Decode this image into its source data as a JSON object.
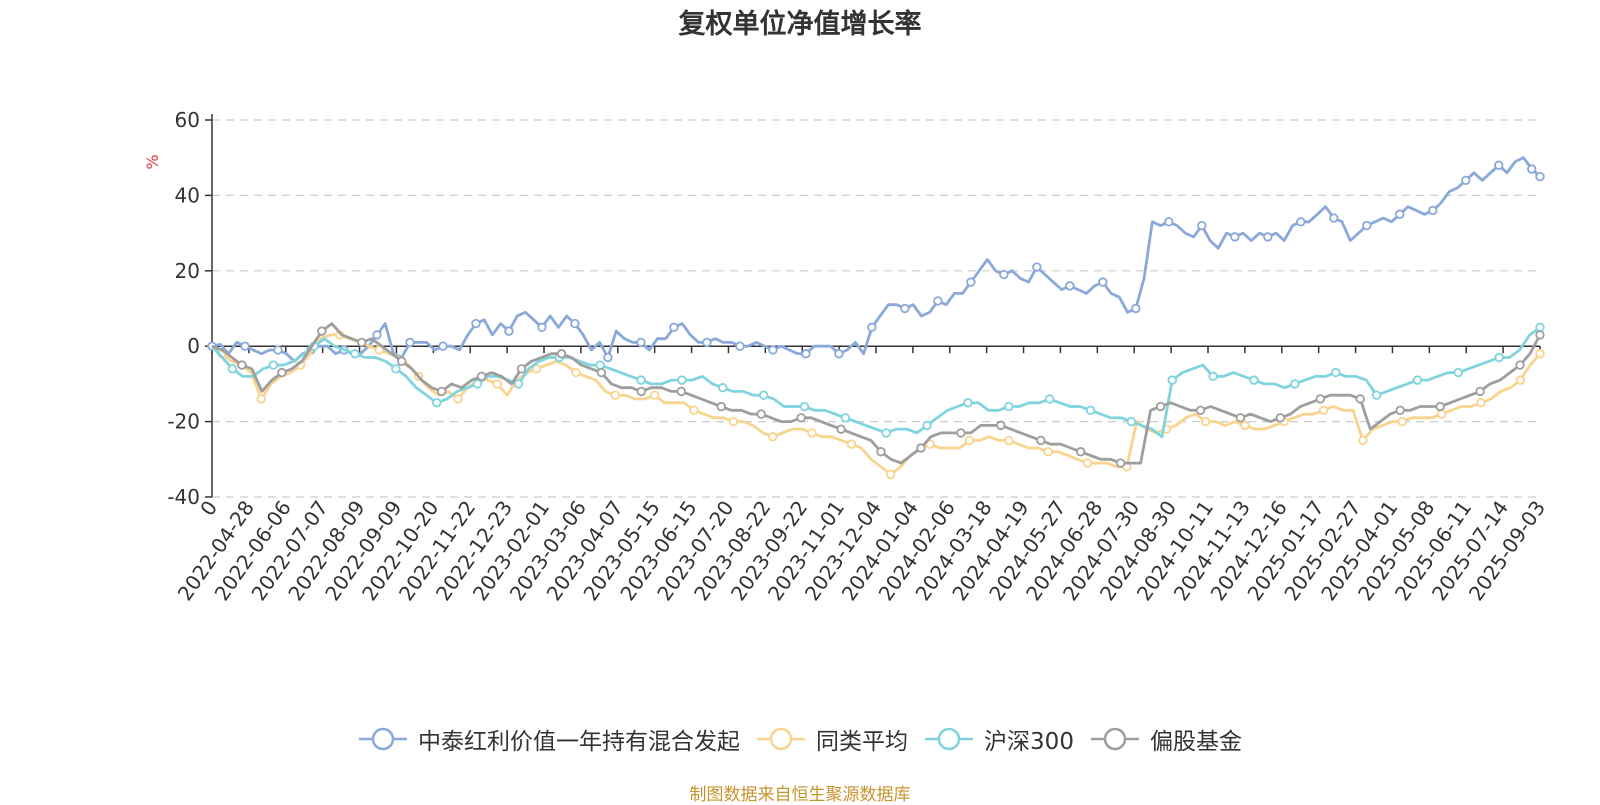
{
  "chart_data": {
    "type": "line",
    "title": "复权单位净值增长率",
    "ylabel": "%",
    "ylim": [
      -40,
      60
    ],
    "yticks": [
      -40,
      -20,
      0,
      20,
      40,
      60
    ],
    "grid": true,
    "legend_position": "bottom",
    "x_tick_labels": [
      "0",
      "2022-04-28",
      "2022-06-06",
      "2022-07-07",
      "2022-08-09",
      "2022-09-09",
      "2022-10-20",
      "2022-11-22",
      "2022-12-23",
      "2023-02-01",
      "2023-03-06",
      "2023-04-07",
      "2023-05-15",
      "2023-06-15",
      "2023-07-20",
      "2023-08-22",
      "2023-09-22",
      "2023-11-01",
      "2023-12-04",
      "2024-01-04",
      "2024-02-06",
      "2024-03-18",
      "2024-04-19",
      "2024-05-27",
      "2024-06-28",
      "2024-07-30",
      "2024-08-30",
      "2024-10-11",
      "2024-11-13",
      "2024-12-16",
      "2025-01-17",
      "2025-02-27",
      "2025-04-01",
      "2025-05-08",
      "2025-06-11",
      "2025-07-14",
      "2025-09-03"
    ],
    "series": [
      {
        "name": "中泰红利价值一年持有混合发起",
        "color": "#8aa9da",
        "values": [
          0,
          0.5,
          -2,
          1,
          0,
          -1,
          -2,
          -1,
          -1,
          -2,
          -4,
          -2,
          -1,
          0,
          0,
          -2,
          -1,
          -2,
          -2,
          0,
          3,
          6,
          -2,
          -3,
          1,
          1,
          1,
          -1,
          0,
          0,
          -1,
          3,
          6,
          7,
          3,
          6,
          4,
          8,
          9,
          7,
          5,
          8,
          5,
          8,
          6,
          3,
          -1,
          1,
          -3,
          4,
          2,
          1,
          1,
          -1,
          2,
          2,
          5,
          6,
          3,
          1,
          1,
          2,
          1,
          1,
          0,
          0,
          1,
          0,
          -1,
          0,
          -1,
          -2,
          -2,
          0,
          0,
          0,
          -2,
          -1,
          1,
          -2,
          5,
          8,
          11,
          11,
          10,
          11,
          8,
          9,
          12,
          11,
          14,
          14,
          17,
          20,
          23,
          20,
          19,
          20,
          18,
          17,
          21,
          19,
          17,
          15,
          16,
          15,
          14,
          16,
          17,
          14,
          13,
          9,
          10,
          18,
          33,
          32,
          33,
          32,
          30,
          29,
          32,
          28,
          26,
          30,
          29,
          30,
          28,
          30,
          29,
          30,
          28,
          32,
          33,
          33,
          35,
          37,
          34,
          33,
          28,
          30,
          32,
          33,
          34,
          33,
          35,
          37,
          36,
          35,
          36,
          38,
          41,
          42,
          44,
          46,
          44,
          46,
          48,
          46,
          49,
          50,
          47,
          45
        ]
      },
      {
        "name": "同类平均",
        "color": "#f9d48e",
        "values": [
          0,
          -2,
          -4,
          -5,
          -7,
          -14,
          -10,
          -8,
          -7,
          -5,
          -2,
          2,
          3,
          3,
          2,
          1,
          0,
          -1,
          -2,
          -3,
          -5,
          -8,
          -11,
          -13,
          -12,
          -14,
          -11,
          -9,
          -9,
          -10,
          -13,
          -9,
          -7,
          -6,
          -5,
          -4,
          -5,
          -7,
          -8,
          -9,
          -12,
          -13,
          -13,
          -14,
          -14,
          -13,
          -15,
          -15,
          -15,
          -17,
          -18,
          -19,
          -19,
          -20,
          -20,
          -21,
          -23,
          -24,
          -23,
          -22,
          -22,
          -23,
          -24,
          -24,
          -25,
          -26,
          -27,
          -30,
          -32,
          -34,
          -32,
          -29,
          -27,
          -26,
          -27,
          -27,
          -27,
          -25,
          -25,
          -24,
          -25,
          -25,
          -26,
          -27,
          -27,
          -28,
          -28,
          -29,
          -30,
          -31,
          -31,
          -31,
          -32,
          -32,
          -20,
          -22,
          -23,
          -22,
          -21,
          -19,
          -18,
          -20,
          -20,
          -21,
          -20,
          -21,
          -22,
          -22,
          -21,
          -20,
          -19,
          -18,
          -18,
          -17,
          -16,
          -17,
          -17,
          -25,
          -22,
          -21,
          -20,
          -20,
          -19,
          -19,
          -19,
          -18,
          -17,
          -16,
          -16,
          -15,
          -14,
          -12,
          -11,
          -9,
          -5,
          -2
        ]
      },
      {
        "name": "沪深300",
        "color": "#7fd4dd",
        "values": [
          0,
          -3,
          -6,
          -8,
          -8,
          -6,
          -5,
          -5,
          -4,
          -2,
          0,
          2,
          0,
          -1,
          -2,
          -3,
          -3,
          -4,
          -6,
          -8,
          -11,
          -13,
          -15,
          -14,
          -12,
          -11,
          -10,
          -8,
          -8,
          -9,
          -10,
          -6,
          -4,
          -3,
          -3,
          -3,
          -4,
          -5,
          -5,
          -6,
          -7,
          -8,
          -9,
          -10,
          -10,
          -9,
          -9,
          -9,
          -8,
          -10,
          -11,
          -12,
          -12,
          -13,
          -13,
          -14,
          -16,
          -16,
          -16,
          -17,
          -17,
          -18,
          -19,
          -20,
          -21,
          -22,
          -23,
          -22,
          -22,
          -23,
          -21,
          -19,
          -17,
          -16,
          -15,
          -15,
          -17,
          -17,
          -16,
          -16,
          -15,
          -15,
          -14,
          -15,
          -16,
          -16,
          -17,
          -18,
          -19,
          -19,
          -20,
          -21,
          -22,
          -24,
          -9,
          -7,
          -6,
          -5,
          -8,
          -8,
          -7,
          -8,
          -9,
          -10,
          -10,
          -11,
          -10,
          -9,
          -8,
          -8,
          -7,
          -8,
          -8,
          -9,
          -13,
          -12,
          -11,
          -10,
          -9,
          -9,
          -8,
          -7,
          -7,
          -6,
          -5,
          -4,
          -3,
          -3,
          -1,
          3,
          5
        ]
      },
      {
        "name": "偏股基金",
        "color": "#9e9e9e",
        "values": [
          0,
          -1,
          -3,
          -5,
          -6,
          -12,
          -9,
          -7,
          -6,
          -4,
          0,
          4,
          6,
          3,
          2,
          1,
          2,
          0,
          -2,
          -4,
          -6,
          -9,
          -11,
          -12,
          -10,
          -11,
          -9,
          -8,
          -7,
          -8,
          -10,
          -6,
          -4,
          -3,
          -2,
          -2,
          -3,
          -5,
          -6,
          -7,
          -10,
          -11,
          -11,
          -12,
          -11,
          -11,
          -12,
          -12,
          -13,
          -14,
          -15,
          -16,
          -17,
          -17,
          -18,
          -18,
          -19,
          -20,
          -20,
          -19,
          -19,
          -20,
          -21,
          -22,
          -23,
          -24,
          -25,
          -28,
          -30,
          -31,
          -29,
          -27,
          -24,
          -23,
          -23,
          -23,
          -23,
          -21,
          -21,
          -21,
          -22,
          -23,
          -24,
          -25,
          -26,
          -26,
          -27,
          -28,
          -29,
          -30,
          -30,
          -31,
          -31,
          -31,
          -17,
          -16,
          -15,
          -16,
          -17,
          -17,
          -16,
          -17,
          -18,
          -19,
          -18,
          -19,
          -20,
          -19,
          -18,
          -16,
          -15,
          -14,
          -13,
          -13,
          -13,
          -14,
          -22,
          -20,
          -18,
          -17,
          -17,
          -16,
          -16,
          -16,
          -15,
          -14,
          -13,
          -12,
          -10,
          -9,
          -7,
          -5,
          -2,
          3
        ]
      }
    ]
  },
  "source_text": "制图数据来自恒生聚源数据库"
}
